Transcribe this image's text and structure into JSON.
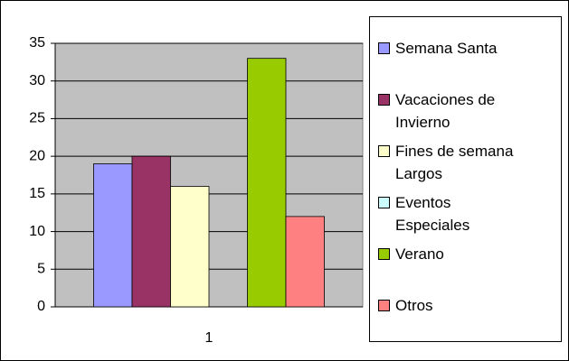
{
  "chart_data": {
    "type": "bar",
    "categories": [
      "1"
    ],
    "series": [
      {
        "name": "Semana Santa",
        "color": "#9999ff",
        "values": [
          19
        ]
      },
      {
        "name": "Vacaciones de Invierno",
        "color": "#993366",
        "values": [
          20
        ]
      },
      {
        "name": "Fines de semana Largos",
        "color": "#ffffcc",
        "values": [
          16
        ]
      },
      {
        "name": "Eventos Especiales",
        "color": "#ccffff",
        "values": [
          0
        ]
      },
      {
        "name": "Verano",
        "color": "#99cc00",
        "values": [
          33
        ]
      },
      {
        "name": "Otros",
        "color": "#ff8080",
        "values": [
          12
        ]
      }
    ],
    "ylim": [
      0,
      35
    ],
    "yticks": [
      0,
      5,
      10,
      15,
      20,
      25,
      30,
      35
    ],
    "grid": true,
    "legend": "right"
  }
}
